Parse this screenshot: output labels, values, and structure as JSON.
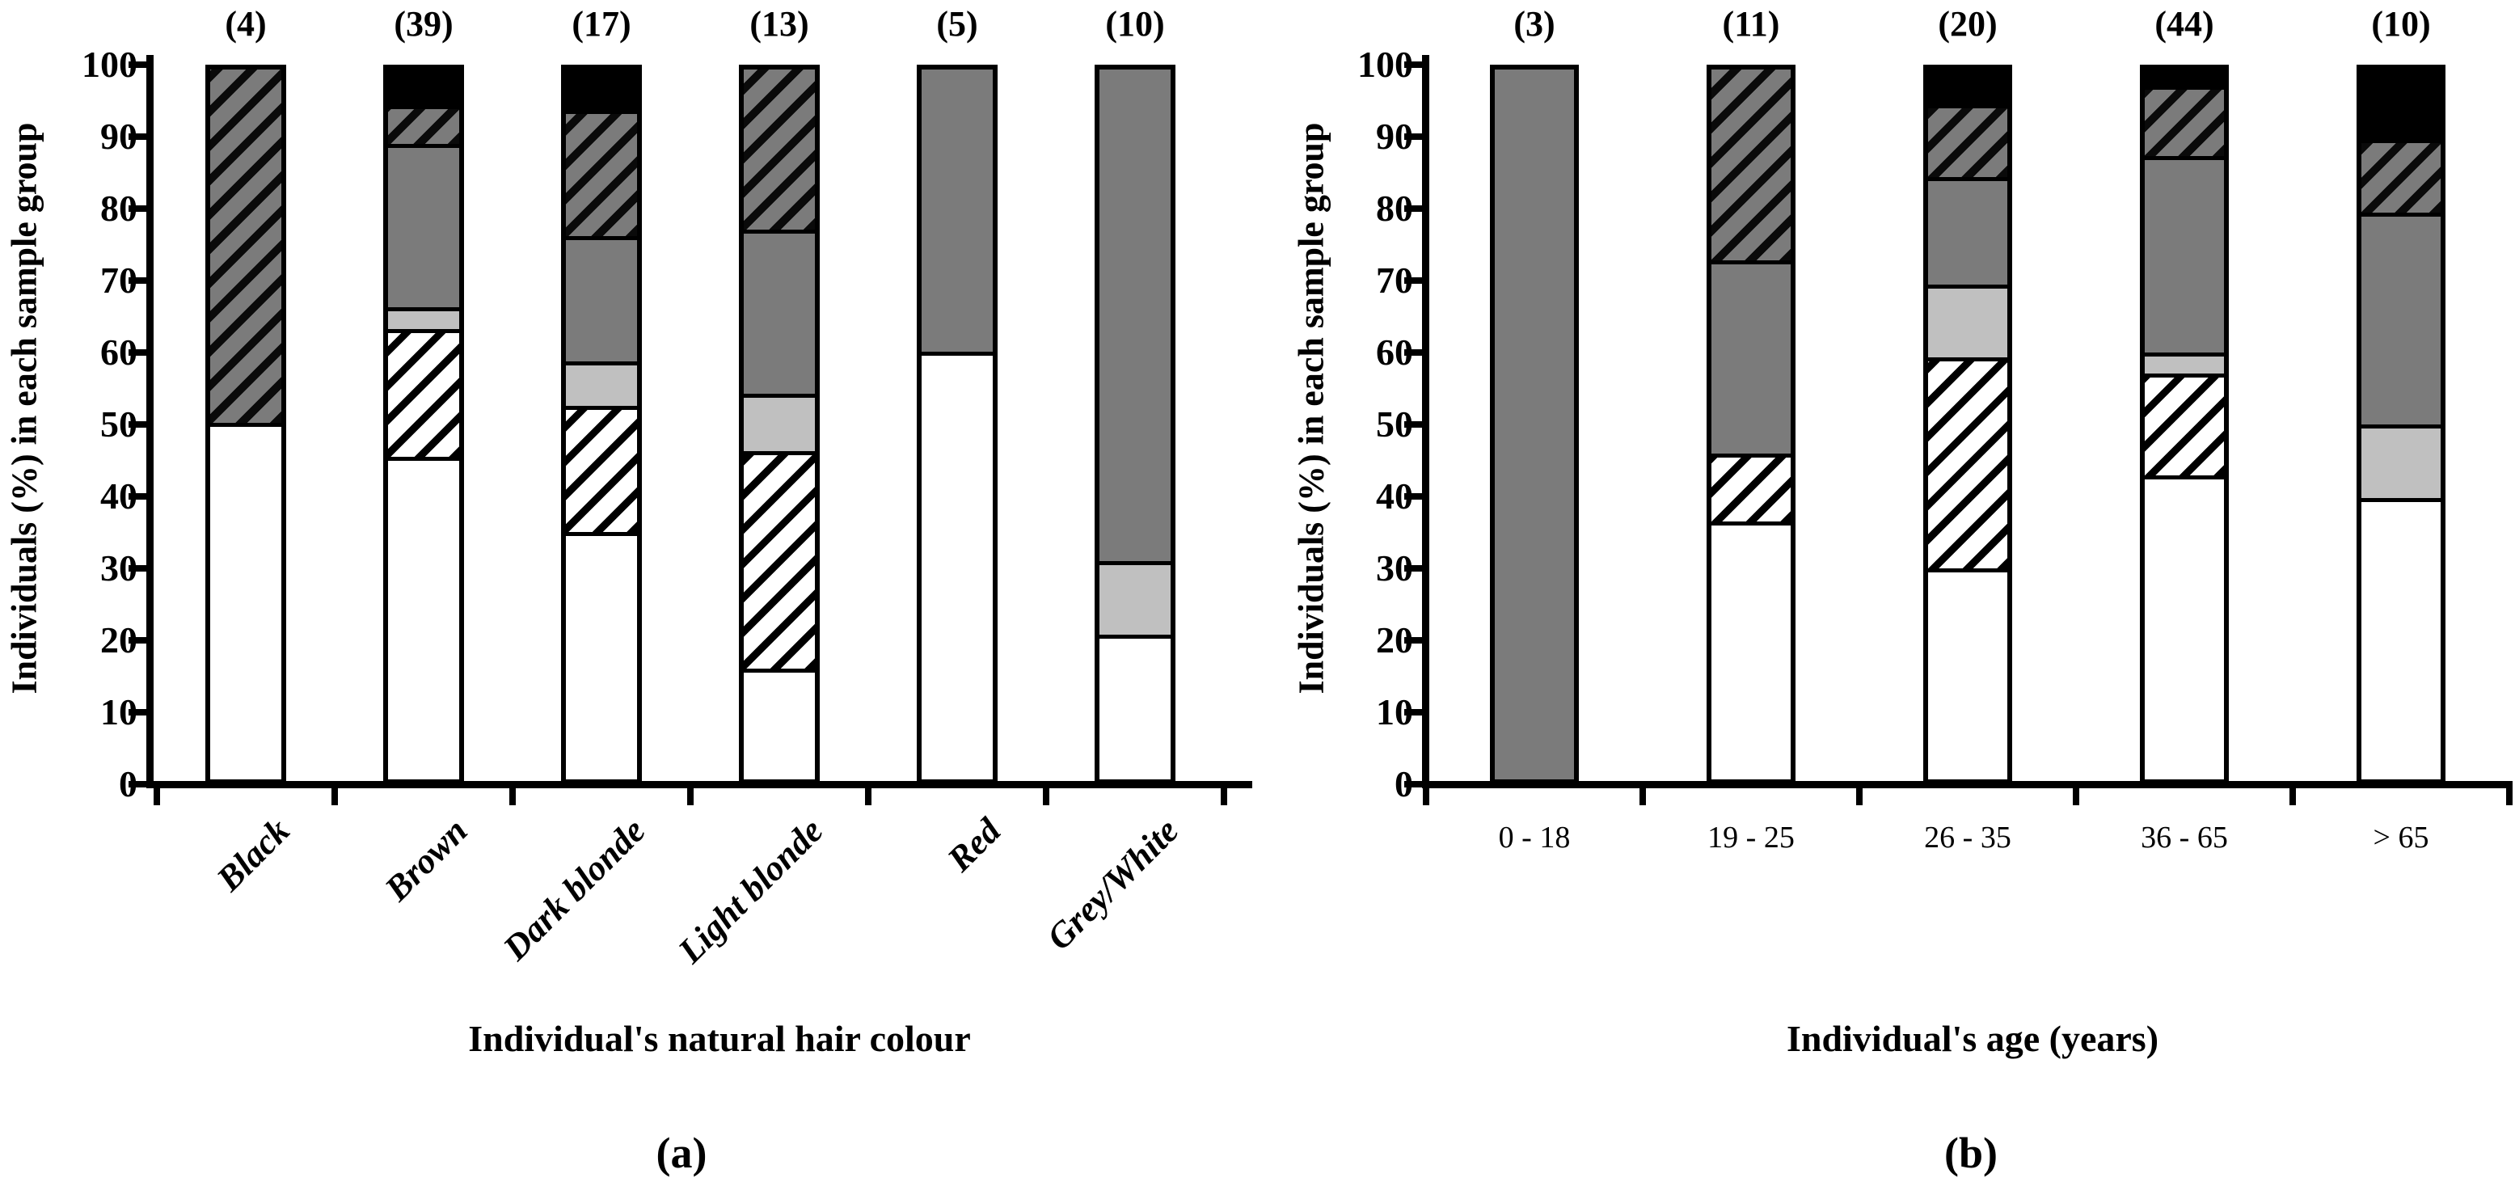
{
  "colors": {
    "dark_gray": "#7b7b7b",
    "light_gray": "#c0c0c0",
    "black": "#000000",
    "white": "#ffffff"
  },
  "chart_data": [
    {
      "type": "bar",
      "stacked": true,
      "orientation": "vertical",
      "grid": false,
      "legend": "none",
      "title": "(a)",
      "xlabel": "Individual's natural hair colour",
      "ylabel": "Individuals (%) in each sample group",
      "ylim": [
        0,
        100
      ],
      "yticks": [
        0,
        10,
        20,
        30,
        40,
        50,
        60,
        70,
        80,
        90,
        100
      ],
      "categories": [
        "Black",
        "Brown",
        "Dark blonde",
        "Light blonde",
        "Red",
        "Grey/White"
      ],
      "sample_sizes": [
        "(4)",
        "(39)",
        "(17)",
        "(13)",
        "(5)",
        "(10)"
      ],
      "series": [
        {
          "name": "white",
          "fill": "white",
          "values": [
            50,
            46.2,
            35.3,
            15.4,
            60,
            20
          ]
        },
        {
          "name": "light_hatch",
          "fill": "white-diagonal-hatch",
          "values": [
            0,
            17.9,
            17.6,
            30.8,
            0,
            0
          ]
        },
        {
          "name": "light_gray",
          "fill": "#c0c0c0",
          "values": [
            0,
            2.6,
            5.9,
            7.7,
            0,
            10
          ]
        },
        {
          "name": "dark_gray",
          "fill": "#7b7b7b",
          "values": [
            0,
            23.1,
            17.6,
            23.1,
            40,
            70
          ]
        },
        {
          "name": "dark_hatch",
          "fill": "gray-diagonal-hatch",
          "values": [
            50,
            5.1,
            17.6,
            23.1,
            0,
            0
          ]
        },
        {
          "name": "black",
          "fill": "#000000",
          "values": [
            0,
            5.1,
            5.9,
            0,
            0,
            0
          ]
        }
      ]
    },
    {
      "type": "bar",
      "stacked": true,
      "orientation": "vertical",
      "grid": false,
      "legend": "none",
      "title": "(b)",
      "xlabel": "Individual's age (years)",
      "ylabel": "Individuals (%) in each sample group",
      "ylim": [
        0,
        100
      ],
      "yticks": [
        0,
        10,
        20,
        30,
        40,
        50,
        60,
        70,
        80,
        90,
        100
      ],
      "categories": [
        "0 - 18",
        "19 - 25",
        "26 - 35",
        "36 - 65",
        "> 65"
      ],
      "sample_sizes": [
        "(3)",
        "(11)",
        "(20)",
        "(44)",
        "(10)"
      ],
      "series": [
        {
          "name": "white",
          "fill": "white",
          "values": [
            0,
            36.4,
            30,
            43.5,
            40
          ]
        },
        {
          "name": "light_hatch",
          "fill": "white-diagonal-hatch",
          "values": [
            0,
            9.1,
            30,
            14.2,
            0
          ]
        },
        {
          "name": "light_gray",
          "fill": "#c0c0c0",
          "values": [
            0,
            0,
            10,
            2.4,
            10
          ]
        },
        {
          "name": "dark_gray",
          "fill": "#7b7b7b",
          "values": [
            100,
            27.2,
            15,
            28,
            30
          ]
        },
        {
          "name": "dark_hatch",
          "fill": "gray-diagonal-hatch",
          "values": [
            0,
            27.3,
            10,
            9.5,
            10
          ]
        },
        {
          "name": "black",
          "fill": "#000000",
          "values": [
            0,
            0,
            5,
            2.4,
            10
          ]
        }
      ]
    }
  ]
}
